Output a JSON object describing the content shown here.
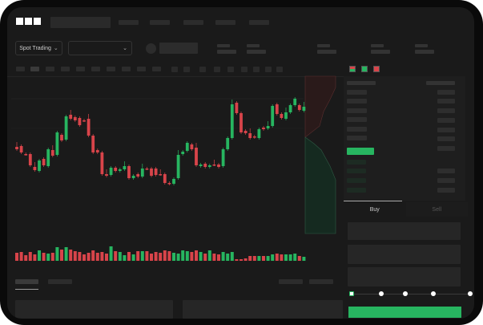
{
  "logo_text": "OKX",
  "header": {
    "market_selector": {
      "label": "Spot Trading",
      "icon": "chevron-down-icon"
    },
    "pair_dropdown": {
      "value": "",
      "icon": "chevron-down-icon"
    }
  },
  "trade_panel": {
    "tabs": [
      {
        "label": "Buy",
        "active": true
      },
      {
        "label": "Sell",
        "active": false
      }
    ],
    "slider_percent": 0
  },
  "colors": {
    "up": "#27b560",
    "down": "#d8444a",
    "background": "#1a1a1a"
  },
  "chart_data": {
    "type": "candlestick",
    "candles": [
      [
        57,
        54
      ],
      [
        58,
        50
      ],
      [
        48,
        48
      ],
      [
        48,
        34
      ],
      [
        32,
        28
      ],
      [
        27,
        40
      ],
      [
        42,
        34
      ],
      [
        33,
        54
      ],
      [
        53,
        46
      ],
      [
        47,
        75
      ],
      [
        72,
        65
      ],
      [
        66,
        95
      ],
      [
        97,
        92
      ],
      [
        94,
        90
      ],
      [
        93,
        84
      ],
      [
        90,
        90
      ],
      [
        92,
        71
      ],
      [
        71,
        50
      ],
      [
        53,
        50
      ],
      [
        50,
        23
      ],
      [
        23,
        21
      ],
      [
        22,
        31
      ],
      [
        31,
        27
      ],
      [
        27,
        29
      ],
      [
        29,
        33
      ],
      [
        33,
        18
      ],
      [
        18,
        21
      ],
      [
        23,
        20
      ],
      [
        20,
        30
      ],
      [
        30,
        30
      ],
      [
        30,
        21
      ],
      [
        30,
        22
      ],
      [
        23,
        23
      ],
      [
        23,
        12
      ],
      [
        12,
        11
      ],
      [
        11,
        17
      ],
      [
        18,
        47
      ],
      [
        48,
        51
      ],
      [
        52,
        62
      ],
      [
        60,
        54
      ],
      [
        56,
        34
      ],
      [
        33,
        35
      ],
      [
        36,
        32
      ],
      [
        32,
        34
      ],
      [
        35,
        35
      ],
      [
        35,
        32
      ],
      [
        33,
        54
      ],
      [
        54,
        68
      ],
      [
        68,
        110
      ],
      [
        112,
        99
      ],
      [
        99,
        75
      ],
      [
        77,
        74
      ],
      [
        74,
        68
      ],
      [
        70,
        69
      ],
      [
        68,
        79
      ],
      [
        81,
        79
      ],
      [
        80,
        83
      ],
      [
        83,
        108
      ],
      [
        110,
        98
      ],
      [
        98,
        93
      ],
      [
        92,
        100
      ],
      [
        100,
        109
      ],
      [
        109,
        117
      ],
      [
        109,
        103
      ],
      [
        102,
        107
      ]
    ],
    "volumes": [
      10,
      11,
      7,
      11,
      8,
      13,
      10,
      9,
      10,
      17,
      14,
      17,
      14,
      12,
      11,
      8,
      10,
      13,
      10,
      11,
      9,
      18,
      12,
      11,
      7,
      11,
      8,
      12,
      12,
      12,
      9,
      11,
      10,
      13,
      12,
      10,
      9,
      13,
      12,
      11,
      13,
      11,
      9,
      13,
      9,
      8,
      11,
      9,
      11,
      2,
      2,
      3,
      6,
      6,
      6,
      6,
      6,
      8,
      9,
      8,
      8,
      8,
      9,
      6,
      5
    ],
    "series_colors_by_direction": true
  }
}
